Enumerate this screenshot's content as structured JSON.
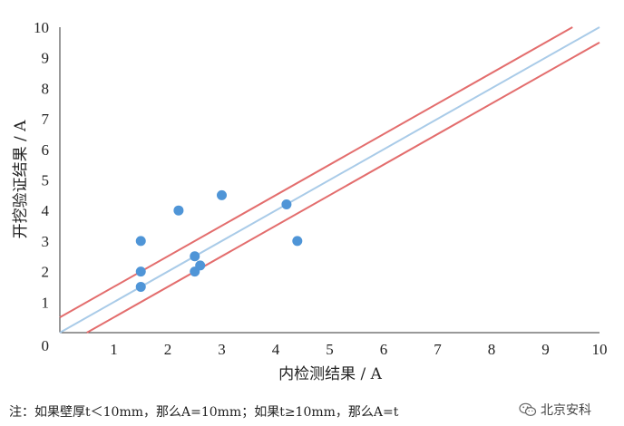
{
  "chart_data": {
    "type": "scatter",
    "xlabel": "内检测结果 / A",
    "ylabel": "开挖验证结果 / A",
    "xlim": [
      0,
      10
    ],
    "ylim": [
      0,
      10
    ],
    "x_ticks": [
      "0",
      "1",
      "2",
      "3",
      "4",
      "5",
      "6",
      "7",
      "8",
      "9",
      "10"
    ],
    "y_ticks": [
      "0",
      "1",
      "2",
      "3",
      "4",
      "5",
      "6",
      "7",
      "8",
      "9",
      "10"
    ],
    "grid": false,
    "points": [
      {
        "x": 1.5,
        "y": 3.0
      },
      {
        "x": 1.5,
        "y": 2.0
      },
      {
        "x": 1.5,
        "y": 1.5
      },
      {
        "x": 2.2,
        "y": 4.0
      },
      {
        "x": 2.5,
        "y": 2.5
      },
      {
        "x": 2.5,
        "y": 2.0
      },
      {
        "x": 2.6,
        "y": 2.2
      },
      {
        "x": 3.0,
        "y": 4.5
      },
      {
        "x": 4.2,
        "y": 4.2
      },
      {
        "x": 4.4,
        "y": 3.0
      }
    ],
    "reference_lines": [
      {
        "role": "equality",
        "color": "#a9cbe8",
        "points": [
          [
            0,
            0
          ],
          [
            10,
            10
          ]
        ]
      },
      {
        "role": "upper",
        "color": "#e36d6d",
        "points": [
          [
            0,
            0.5
          ],
          [
            9.5,
            10
          ]
        ]
      },
      {
        "role": "lower",
        "color": "#e36d6d",
        "points": [
          [
            0.5,
            0
          ],
          [
            10,
            9.5
          ]
        ]
      }
    ],
    "point_color": "#4f95d7"
  },
  "note": "注：如果壁厚t＜10mm，那么A=10mm；如果t≥10mm，那么A=t",
  "watermark": {
    "label": "北京安科",
    "icon": "wechat-icon"
  }
}
